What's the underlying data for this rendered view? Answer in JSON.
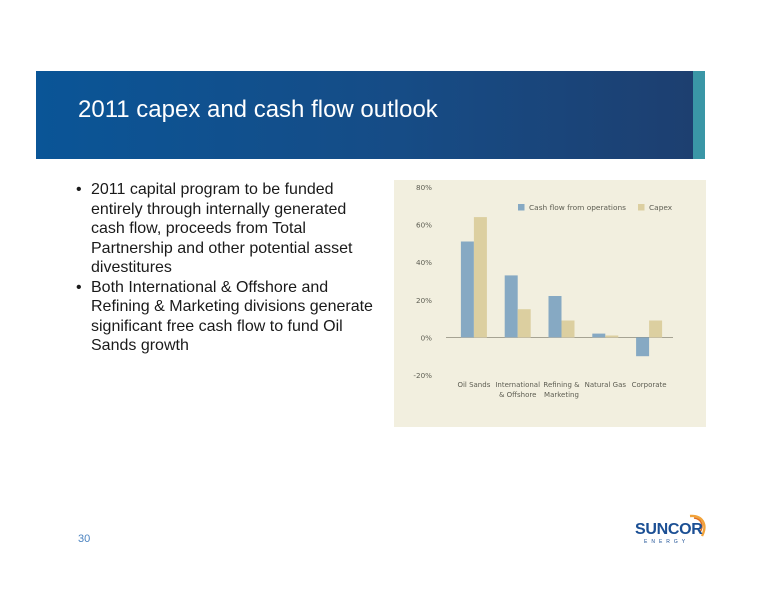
{
  "slide": {
    "title": "2011 capex and cash flow outlook",
    "bullets": [
      "2011 capital program to be funded entirely through internally generated cash flow, proceeds from Total Partnership and other potential asset divestitures",
      "Both International & Offshore and Refining & Marketing divisions generate significant free cash flow to fund Oil Sands growth"
    ],
    "page_number": "30"
  },
  "logo": {
    "name": "SUNCOR",
    "sub": "ENERGY"
  },
  "colors": {
    "title_band": "#164c86",
    "title_accent": "#3a96a6",
    "chart_background": "#f2efdf",
    "cash_flow": "#86a9c3",
    "capex": "#dccfa0"
  },
  "chart_data": {
    "type": "bar",
    "categories": [
      [
        "Oil Sands"
      ],
      [
        "International",
        "& Offshore"
      ],
      [
        "Refining &",
        "Marketing"
      ],
      [
        "Natural Gas"
      ],
      [
        "Corporate"
      ]
    ],
    "series": [
      {
        "name": "Cash flow from operations",
        "color": "#86a9c3",
        "values": [
          51,
          33,
          22,
          2,
          -10
        ]
      },
      {
        "name": "Capex",
        "color": "#dccfa0",
        "values": [
          64,
          15,
          9,
          1,
          9
        ]
      }
    ],
    "yticks": [
      "-20%",
      "0%",
      "20%",
      "40%",
      "60%",
      "80%"
    ],
    "ytick_values": [
      -20,
      0,
      20,
      40,
      60,
      80
    ],
    "ylim": [
      -20,
      80
    ],
    "legend_position": "top-right",
    "grid": false
  }
}
